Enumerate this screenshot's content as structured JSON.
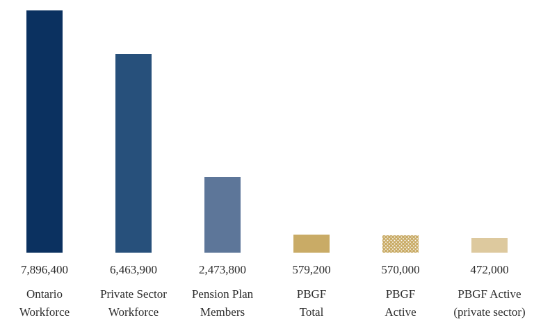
{
  "page": {
    "background_color": "#ffffff",
    "text_color": "#2b2b2b"
  },
  "chart_data": {
    "type": "bar",
    "title": "",
    "xlabel": "",
    "ylabel": "",
    "orientation": "vertical",
    "grid": false,
    "legend": "none",
    "axis_lines": "none",
    "ylim": [
      0,
      7896400
    ],
    "categories": [
      "Ontario Workforce",
      "Private Sector Workforce",
      "Pension Plan Members",
      "PBGF Total",
      "PBGF Active",
      "PBGF Active (private sector)"
    ],
    "values": [
      7896400,
      6463900,
      2473800,
      579200,
      570000,
      472000
    ],
    "value_labels": [
      "7,896,400",
      "6,463,900",
      "2,473,800",
      "579,200",
      "570,000",
      "472,000"
    ],
    "category_lines": [
      [
        "Ontario",
        "Workforce"
      ],
      [
        "Private Sector",
        "Workforce"
      ],
      [
        "Pension Plan",
        "Members"
      ],
      [
        "PBGF",
        "Total"
      ],
      [
        "PBGF",
        "Active"
      ],
      [
        "PBGF Active",
        "(private sector)"
      ]
    ],
    "bar_colors": [
      "#0b3160",
      "#27507b",
      "#5d7699",
      "#c9ab66",
      "#c9ab66",
      "#ddc99e"
    ],
    "bar_patterns": [
      "solid",
      "solid",
      "solid",
      "solid",
      "dotted",
      "solid"
    ]
  }
}
